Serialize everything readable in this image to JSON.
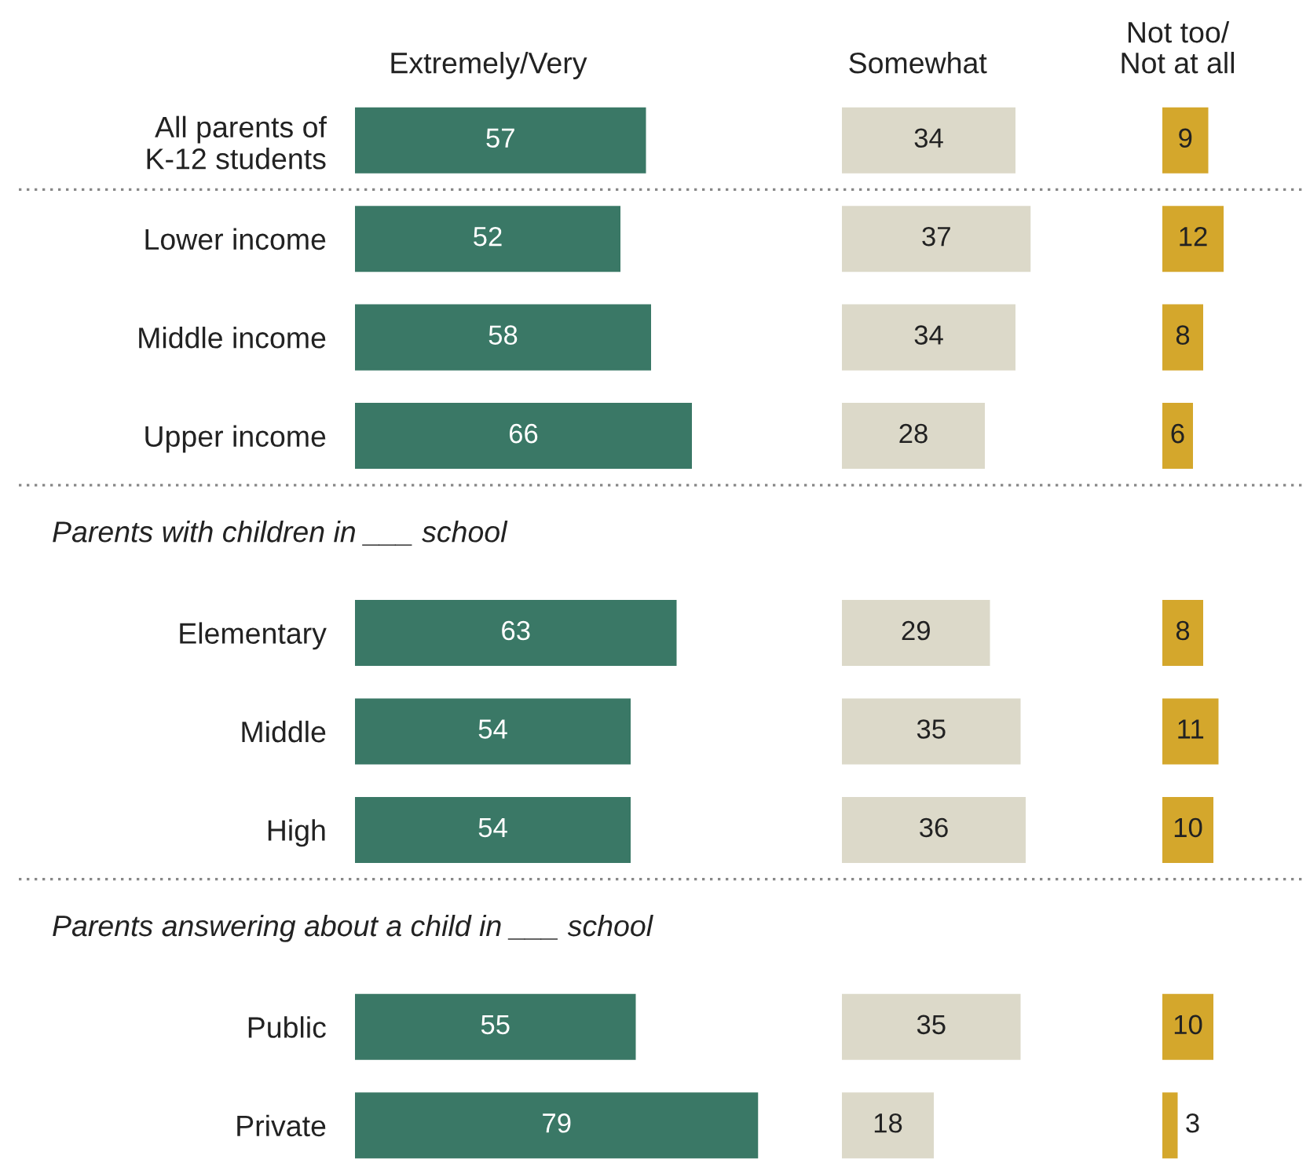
{
  "chart_data": [
    {
      "type": "bar",
      "orientation": "horizontal",
      "title": "Extremely/Very",
      "tick_labels": "y",
      "data_labels": true,
      "categories": [
        "All parents of\nK-12 students",
        "Lower income",
        "Middle income",
        "Upper income",
        null,
        "Elementary",
        "Middle",
        "High",
        null,
        "Public",
        "Private"
      ],
      "series": [
        {
          "color": "#3a7866",
          "values": [
            57,
            52,
            58,
            66,
            null,
            63,
            54,
            54,
            null,
            55,
            79
          ]
        }
      ],
      "annotations": [
        "Parents with children in ___ school",
        "Parents answering about a child in ___ school"
      ]
    },
    {
      "type": "bar",
      "orientation": "horizontal",
      "title": "Somewhat",
      "tick_labels": false,
      "data_labels": true,
      "series": [
        {
          "color": "#dcd9c9",
          "values": [
            34,
            37,
            34,
            28,
            null,
            29,
            35,
            36,
            null,
            35,
            18
          ]
        }
      ]
    },
    {
      "type": "bar",
      "orientation": "horizontal",
      "title": "Not too/\nNot at all",
      "tick_labels": false,
      "data_labels": true,
      "series": [
        {
          "color": "#d4a72c",
          "values": [
            9,
            12,
            8,
            6,
            null,
            8,
            11,
            10,
            null,
            10,
            3
          ]
        }
      ]
    }
  ]
}
